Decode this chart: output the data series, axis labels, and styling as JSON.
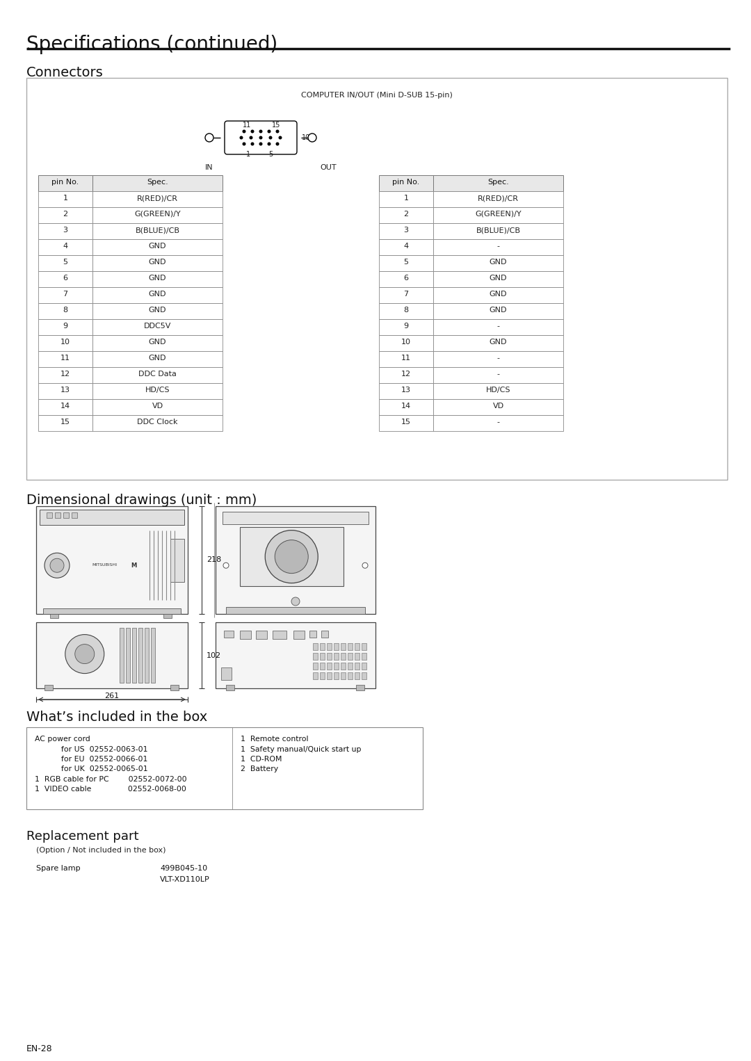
{
  "title": "Specifications (continued)",
  "section1": "Connectors",
  "connector_label": "COMPUTER IN/OUT (Mini D-SUB 15-pin)",
  "in_label": "IN",
  "out_label": "OUT",
  "table_in_headers": [
    "pin No.",
    "Spec."
  ],
  "table_out_headers": [
    "pin No.",
    "Spec."
  ],
  "table_in_data": [
    [
      "1",
      "R(RED)/CR"
    ],
    [
      "2",
      "G(GREEN)/Y"
    ],
    [
      "3",
      "B(BLUE)/CB"
    ],
    [
      "4",
      "GND"
    ],
    [
      "5",
      "GND"
    ],
    [
      "6",
      "GND"
    ],
    [
      "7",
      "GND"
    ],
    [
      "8",
      "GND"
    ],
    [
      "9",
      "DDC5V"
    ],
    [
      "10",
      "GND"
    ],
    [
      "11",
      "GND"
    ],
    [
      "12",
      "DDC Data"
    ],
    [
      "13",
      "HD/CS"
    ],
    [
      "14",
      "VD"
    ],
    [
      "15",
      "DDC Clock"
    ]
  ],
  "table_out_data": [
    [
      "1",
      "R(RED)/CR"
    ],
    [
      "2",
      "G(GREEN)/Y"
    ],
    [
      "3",
      "B(BLUE)/CB"
    ],
    [
      "4",
      "-"
    ],
    [
      "5",
      "GND"
    ],
    [
      "6",
      "GND"
    ],
    [
      "7",
      "GND"
    ],
    [
      "8",
      "GND"
    ],
    [
      "9",
      "-"
    ],
    [
      "10",
      "GND"
    ],
    [
      "11",
      "-"
    ],
    [
      "12",
      "-"
    ],
    [
      "13",
      "HD/CS"
    ],
    [
      "14",
      "VD"
    ],
    [
      "15",
      "-"
    ]
  ],
  "section2": "Dimensional drawings (unit : mm)",
  "dim1": "218",
  "dim2": "261",
  "dim3": "102",
  "section3": "What’s included in the box",
  "section4": "Replacement part",
  "replacement_sub": "(Option / Not included in the box)",
  "spare_lamp_label": "Spare lamp",
  "page_number": "EN-28",
  "bg_color": "#ffffff"
}
